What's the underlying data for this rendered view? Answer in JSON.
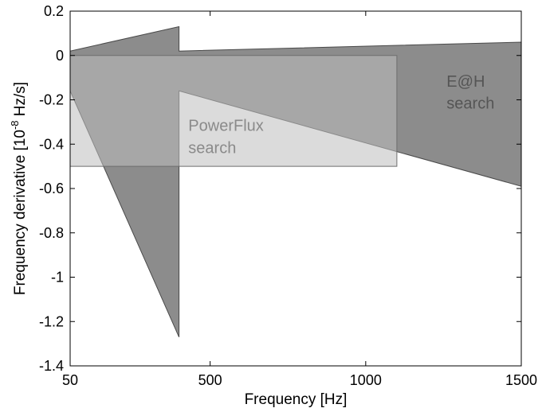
{
  "chart_data": {
    "type": "area",
    "title": "",
    "xlabel": "Frequency [Hz]",
    "ylabel": {
      "prefix": "Frequency derivative [10",
      "exponent": "-8",
      "suffix": " Hz/s]"
    },
    "xlim": [
      50,
      1500
    ],
    "ylim": [
      -1.4,
      0.2
    ],
    "x_ticks": [
      {
        "value": 50,
        "label": "50"
      },
      {
        "value": 500,
        "label": "500"
      },
      {
        "value": 1000,
        "label": "1000"
      },
      {
        "value": 1500,
        "label": "1500"
      }
    ],
    "y_ticks": [
      {
        "value": 0.2,
        "label": "0.2"
      },
      {
        "value": 0,
        "label": "0"
      },
      {
        "value": -0.2,
        "label": "-0.2"
      },
      {
        "value": -0.4,
        "label": "-0.4"
      },
      {
        "value": -0.6,
        "label": "-0.6"
      },
      {
        "value": -0.8,
        "label": "-0.8"
      },
      {
        "value": -1,
        "label": "-1"
      },
      {
        "value": -1.2,
        "label": "-1.2"
      },
      {
        "value": -1.4,
        "label": "-1.4"
      }
    ],
    "grid": false,
    "regions": [
      {
        "key": "eh",
        "fill": "#8c8c8c",
        "stroke": "#4a4a4a",
        "points": [
          [
            50,
            0.02
          ],
          [
            400,
            0.13
          ],
          [
            400,
            0.02
          ],
          [
            1500,
            0.06
          ],
          [
            1500,
            -0.59
          ],
          [
            400,
            -0.16
          ],
          [
            400,
            -1.27
          ],
          [
            50,
            -0.16
          ]
        ]
      },
      {
        "key": "powerflux",
        "fill": "#bdbdbd",
        "fill_opacity": 0.55,
        "stroke": "#6e6e6e",
        "points": [
          [
            50,
            0
          ],
          [
            1100,
            0
          ],
          [
            1100,
            -0.5
          ],
          [
            50,
            -0.5
          ]
        ]
      }
    ],
    "annotations": [
      {
        "key": "eh-line1",
        "text": "E@H",
        "x": 1260,
        "y": -0.14,
        "color": "#555555"
      },
      {
        "key": "eh-line2",
        "text": "search",
        "x": 1260,
        "y": -0.24,
        "color": "#555555"
      },
      {
        "key": "pf-line1",
        "text": "PowerFlux",
        "x": 430,
        "y": -0.34,
        "color": "#8a8a8a"
      },
      {
        "key": "pf-line2",
        "text": "search",
        "x": 430,
        "y": -0.44,
        "color": "#8a8a8a"
      }
    ],
    "colors": {
      "axes": "#000000",
      "background": "#ffffff"
    }
  }
}
